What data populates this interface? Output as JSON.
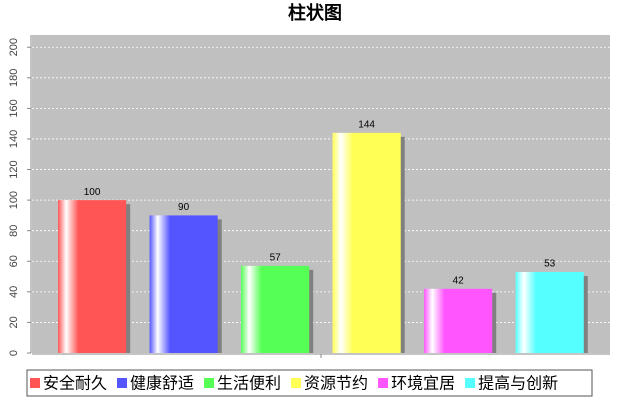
{
  "chart_data": {
    "type": "bar",
    "title": "柱状图",
    "categories": [
      null
    ],
    "series": [
      {
        "name": "安全耐久",
        "color": "#ff5555",
        "values": [
          100
        ]
      },
      {
        "name": "健康舒适",
        "color": "#5555ff",
        "values": [
          90
        ]
      },
      {
        "name": "生活便利",
        "color": "#55ff55",
        "values": [
          57
        ]
      },
      {
        "name": "资源节约",
        "color": "#ffff55",
        "values": [
          144
        ]
      },
      {
        "name": "环境宜居",
        "color": "#ff55ff",
        "values": [
          42
        ]
      },
      {
        "name": "提高与创新",
        "color": "#55ffff",
        "values": [
          53
        ]
      }
    ],
    "ylim": [
      0,
      208
    ],
    "yticks": [
      0,
      20,
      40,
      60,
      80,
      100,
      120,
      140,
      160,
      180,
      200
    ],
    "grid": true,
    "legend": "bottom"
  }
}
